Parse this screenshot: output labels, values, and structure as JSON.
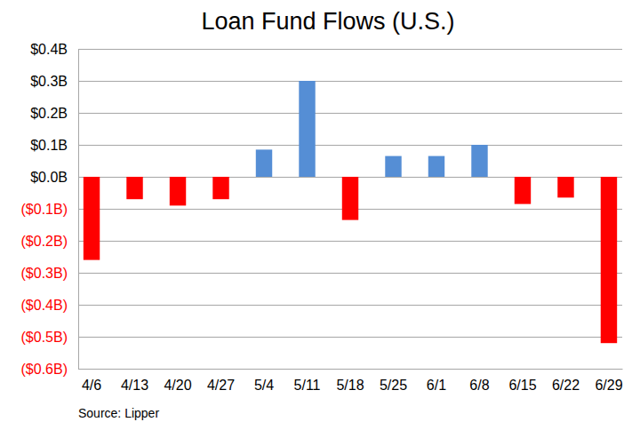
{
  "chart_data": {
    "type": "bar",
    "title": "Loan Fund Flows (U.S.)",
    "annotation": "Source: Lipper",
    "categories": [
      "4/6",
      "4/13",
      "4/20",
      "4/27",
      "5/4",
      "5/11",
      "5/18",
      "5/25",
      "6/1",
      "6/8",
      "6/15",
      "6/22",
      "6/29"
    ],
    "values": [
      -0.26,
      -0.07,
      -0.09,
      -0.07,
      0.085,
      0.3,
      -0.135,
      0.065,
      0.065,
      0.1,
      -0.085,
      -0.065,
      -0.52
    ],
    "colors": [
      "#ff0000",
      "#ff0000",
      "#ff0000",
      "#ff0000",
      "#558ed5",
      "#558ed5",
      "#ff0000",
      "#558ed5",
      "#558ed5",
      "#558ed5",
      "#ff0000",
      "#ff0000",
      "#ff0000"
    ],
    "ylim": [
      -0.6,
      0.4
    ],
    "yticks": [
      {
        "value": -0.6,
        "label": "($0.6B)"
      },
      {
        "value": -0.5,
        "label": "($0.5B)"
      },
      {
        "value": -0.4,
        "label": "($0.4B)"
      },
      {
        "value": -0.3,
        "label": "($0.3B)"
      },
      {
        "value": -0.2,
        "label": "($0.2B)"
      },
      {
        "value": -0.1,
        "label": "($0.1B)"
      },
      {
        "value": 0,
        "label": "$0.0B"
      },
      {
        "value": 0.1,
        "label": "$0.1B"
      },
      {
        "value": 0.2,
        "label": "$0.2B"
      },
      {
        "value": 0.3,
        "label": "$0.3B"
      },
      {
        "value": 0.4,
        "label": "$0.4B"
      }
    ],
    "grid": true
  }
}
